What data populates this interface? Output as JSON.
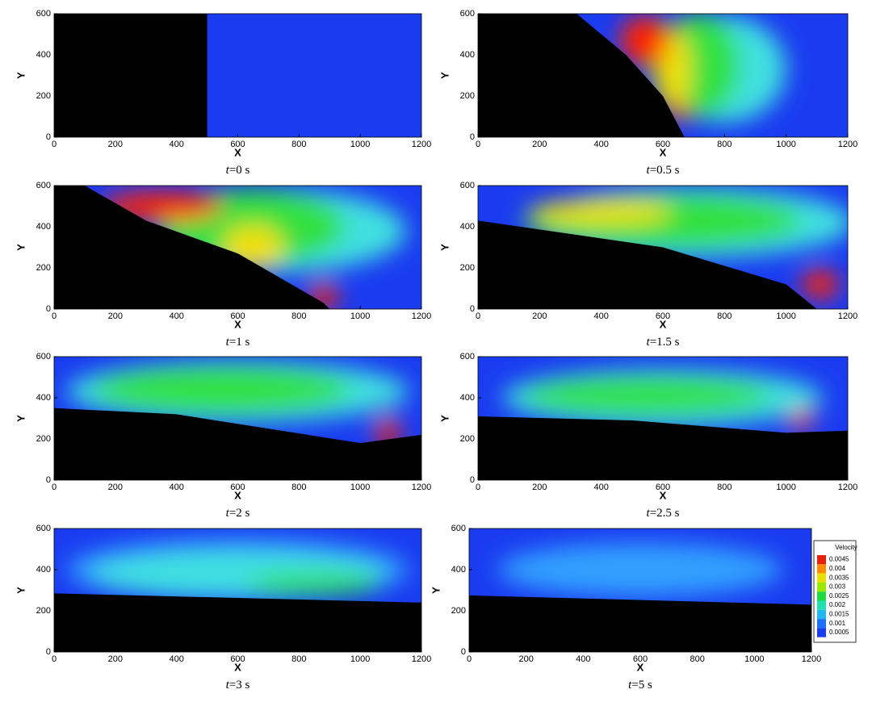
{
  "axes": {
    "x_label": "X",
    "y_label": "Y",
    "xticks": [
      0,
      200,
      400,
      600,
      800,
      1000,
      1200
    ],
    "yticks": [
      0,
      200,
      400,
      600
    ]
  },
  "panels": [
    {
      "caption_var": "t",
      "caption_rest": "=0 s"
    },
    {
      "caption_var": "t",
      "caption_rest": "=0.5 s"
    },
    {
      "caption_var": "t",
      "caption_rest": "=1 s"
    },
    {
      "caption_var": "t",
      "caption_rest": "=1.5 s"
    },
    {
      "caption_var": "t",
      "caption_rest": "=2 s"
    },
    {
      "caption_var": "t",
      "caption_rest": "=2.5 s"
    },
    {
      "caption_var": "t",
      "caption_rest": "=3 s"
    },
    {
      "caption_var": "t",
      "caption_rest": "=5 s"
    }
  ],
  "colorbar": {
    "title": "Velocity",
    "levels": [
      0.0045,
      0.004,
      0.0035,
      0.003,
      0.0025,
      0.002,
      0.0015,
      0.001,
      0.0005
    ]
  }
}
